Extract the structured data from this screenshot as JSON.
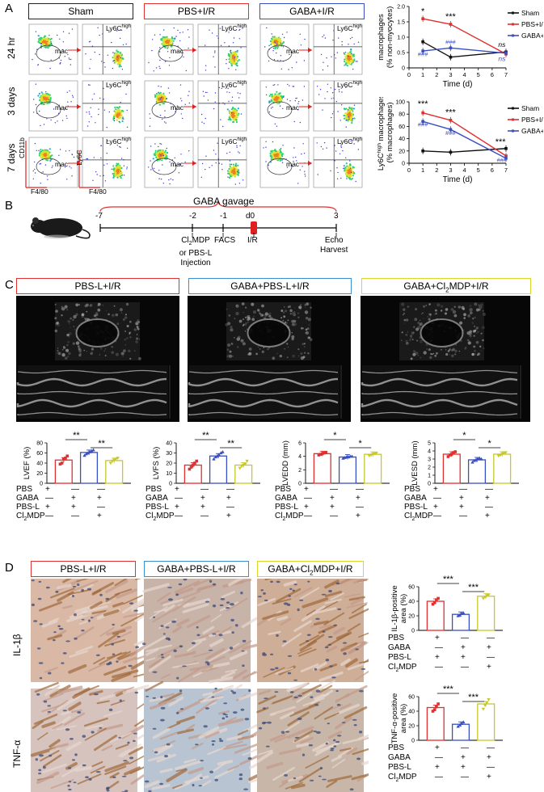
{
  "panels": {
    "a": "A",
    "b": "B",
    "c": "C",
    "d": "D"
  },
  "panel_a": {
    "groups": [
      "Sham",
      "PBS+I/R",
      "GABA+I/R"
    ],
    "group_colors": [
      "#222222",
      "#e03030",
      "#3a4fc0"
    ],
    "timepoints": [
      "24 hr",
      "3 days",
      "7 days"
    ],
    "gate_mac": "mac",
    "gate_ly6c": "Ly6C",
    "gate_ly6c_sup": "high",
    "axis_cd11b": "CD11b",
    "axis_f480": "F4/80",
    "axis_ly6c": "Ly6C"
  },
  "chart_data": [
    {
      "type": "line",
      "ylabel_line1": "macrophages",
      "ylabel_line2": "(% non-myocytes)",
      "xlabel": "Time (d)",
      "x": [
        1,
        3,
        7
      ],
      "xlim": [
        0,
        7
      ],
      "ylim": [
        0,
        2.0
      ],
      "yticks": [
        0,
        0.5,
        1.0,
        1.5,
        2.0
      ],
      "yticklabels": [
        "0",
        "0.5",
        "1.0",
        "1.5",
        "2.0"
      ],
      "xticks": [
        0,
        1,
        2,
        3,
        4,
        5,
        6,
        7
      ],
      "series": [
        {
          "name": "Sham",
          "color": "#111111",
          "values": [
            0.85,
            0.35,
            0.52
          ]
        },
        {
          "name": "PBS+I/R",
          "color": "#e03030",
          "values": [
            1.6,
            1.42,
            0.45
          ]
        },
        {
          "name": "GABA+I/R",
          "color": "#3a4fc0",
          "values": [
            0.55,
            0.65,
            0.48
          ]
        }
      ],
      "annotations": {
        "star1": "*",
        "star2": "***",
        "hash1": "###",
        "hash2": "###",
        "ns1": "ns",
        "ns2": "ns"
      }
    },
    {
      "type": "line",
      "ylabel_line1": "Ly6C",
      "ylabel_sup": "high",
      "ylabel_mid": " macrophages",
      "ylabel_line2": "(% macrophages)",
      "xlabel": "Time (d)",
      "x": [
        1,
        3,
        7
      ],
      "xlim": [
        0,
        7
      ],
      "ylim": [
        0,
        100
      ],
      "yticks": [
        0,
        20,
        40,
        60,
        80,
        100
      ],
      "yticklabels": [
        "0",
        "20",
        "40",
        "60",
        "80",
        "100"
      ],
      "xticks": [
        0,
        1,
        2,
        3,
        4,
        5,
        6,
        7
      ],
      "series": [
        {
          "name": "Sham",
          "color": "#111111",
          "values": [
            20,
            18,
            24
          ]
        },
        {
          "name": "PBS+I/R",
          "color": "#e03030",
          "values": [
            82,
            70,
            12
          ]
        },
        {
          "name": "GABA+I/R",
          "color": "#3a4fc0",
          "values": [
            68,
            55,
            8
          ]
        }
      ],
      "annotations": {
        "star1": "***",
        "star2": "***",
        "star3": "***",
        "hash1": "###",
        "hash2": "###",
        "hash3": "###"
      }
    },
    {
      "type": "bar",
      "ylabel": "LVEF (%)",
      "ylim": [
        0,
        80
      ],
      "yticks": [
        0,
        20,
        40,
        60,
        80
      ],
      "categories": [
        "PBS-L+I/R",
        "GABA+PBS-L+I/R",
        "GABA+Cl2MDP+I/R"
      ],
      "values": [
        46,
        61,
        45
      ],
      "points": [
        [
          38,
          40,
          48,
          50,
          54
        ],
        [
          55,
          58,
          60,
          62,
          64,
          66
        ],
        [
          40,
          44,
          46,
          48,
          50
        ]
      ],
      "sig": [
        "**",
        "**"
      ]
    },
    {
      "type": "bar",
      "ylabel": "LVFS (%)",
      "ylim": [
        0,
        40
      ],
      "yticks": [
        0,
        10,
        20,
        30,
        40
      ],
      "categories": [
        "PBS-L+I/R",
        "GABA+PBS-L+I/R",
        "GABA+Cl2MDP+I/R"
      ],
      "values": [
        18,
        27,
        18
      ],
      "points": [
        [
          14,
          16,
          18,
          20,
          22
        ],
        [
          24,
          26,
          27,
          28,
          30,
          31
        ],
        [
          15,
          17,
          18,
          19,
          22
        ]
      ],
      "sig": [
        "**",
        "**"
      ]
    },
    {
      "type": "bar",
      "ylabel": "LVEDD (mm)",
      "ylim": [
        0,
        6
      ],
      "yticks": [
        0,
        2,
        4,
        6
      ],
      "categories": [
        "PBS-L+I/R",
        "GABA+PBS-L+I/R",
        "GABA+Cl2MDP+I/R"
      ],
      "values": [
        4.4,
        3.9,
        4.3
      ],
      "points": [
        [
          4.2,
          4.3,
          4.4,
          4.5,
          4.6
        ],
        [
          3.7,
          3.8,
          3.9,
          3.9,
          4.0,
          4.0
        ],
        [
          4.1,
          4.2,
          4.3,
          4.4,
          4.5
        ]
      ],
      "sig": [
        "*",
        "*"
      ]
    },
    {
      "type": "bar",
      "ylabel": "LVESD (mm)",
      "ylim": [
        0,
        5
      ],
      "yticks": [
        0,
        1,
        2,
        3,
        4,
        5
      ],
      "categories": [
        "PBS-L+I/R",
        "GABA+PBS-L+I/R",
        "GABA+Cl2MDP+I/R"
      ],
      "values": [
        3.6,
        2.9,
        3.6
      ],
      "points": [
        [
          3.3,
          3.5,
          3.6,
          3.8,
          3.9
        ],
        [
          2.6,
          2.8,
          2.9,
          3.0,
          3.1,
          3.0
        ],
        [
          3.4,
          3.5,
          3.6,
          3.7,
          3.8
        ]
      ],
      "sig": [
        "*",
        "*"
      ]
    },
    {
      "type": "bar",
      "ylabel_line1": "IL-1β-positive",
      "ylabel_line2": "area (%)",
      "ylim": [
        0,
        60
      ],
      "yticks": [
        0,
        20,
        40,
        60
      ],
      "categories": [
        "PBS-L+I/R",
        "GABA+PBS-L+I/R",
        "GABA+Cl2MDP+I/R"
      ],
      "values": [
        40,
        22,
        47
      ],
      "points": [
        [
          36,
          38,
          42,
          44
        ],
        [
          20,
          21,
          23,
          24
        ],
        [
          44,
          46,
          48,
          49
        ]
      ],
      "sig": [
        "***",
        "***"
      ]
    },
    {
      "type": "bar",
      "ylabel_line1": "TNF-α-positive",
      "ylabel_line2": "area (%)",
      "ylim": [
        0,
        60
      ],
      "yticks": [
        0,
        20,
        40,
        60
      ],
      "categories": [
        "PBS-L+I/R",
        "GABA+PBS-L+I/R",
        "GABA+Cl2MDP+I/R"
      ],
      "values": [
        45,
        22,
        50
      ],
      "points": [
        [
          40,
          42,
          46,
          50
        ],
        [
          19,
          21,
          23,
          25
        ],
        [
          43,
          48,
          52,
          56
        ]
      ],
      "sig": [
        "***",
        "***"
      ]
    }
  ],
  "panel_b": {
    "title": "GABA gavage",
    "days": [
      "-7",
      "-2",
      "-1",
      "d0",
      "3"
    ],
    "events": {
      "clmdp_1": "Cl",
      "clmdp_sub": "2",
      "clmdp_2": "MDP",
      "or_pbs": "or PBS-L",
      "injection": "Injection",
      "facs": "FACS",
      "ir": "I/R",
      "echo": "Echo",
      "harvest": "Harvest"
    }
  },
  "panel_c": {
    "headers": [
      "PBS-L+I/R",
      "GABA+PBS-L+I/R",
      "GABA+Cl"
    ],
    "header3_sub": "2",
    "header3_tail": "MDP+I/R",
    "header_colors": [
      "#e03030",
      "#3a8fd0",
      "#d8d828"
    ]
  },
  "treatment_table": {
    "rows": [
      "PBS",
      "GABA",
      "PBS-L",
      "Cl"
    ],
    "row4_sub": "2",
    "row4_tail": "MDP",
    "marks": [
      [
        "+",
        "—",
        "—"
      ],
      [
        "—",
        "+",
        "+"
      ],
      [
        "+",
        "+",
        "—"
      ],
      [
        "—",
        "—",
        "+"
      ]
    ]
  },
  "panel_d": {
    "headers": [
      "PBS-L+I/R",
      "GABA+PBS-L+I/R",
      "GABA+Cl"
    ],
    "header3_sub": "2",
    "header3_tail": "MDP+I/R",
    "header_colors": [
      "#e03030",
      "#3a8fd0",
      "#d8d828"
    ],
    "rows": [
      "IL-1β",
      "TNF-α"
    ]
  }
}
